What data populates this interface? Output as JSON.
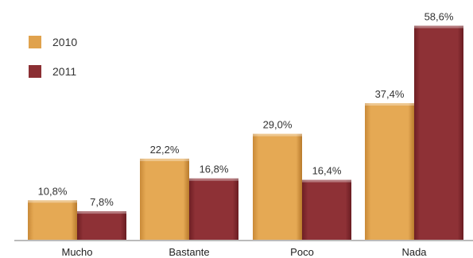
{
  "chart_data": {
    "type": "bar",
    "categories": [
      "Mucho",
      "Bastante",
      "Poco",
      "Nada"
    ],
    "series": [
      {
        "name": "2010",
        "values": [
          10.8,
          22.2,
          29.0,
          37.4
        ],
        "labels": [
          "10,8%",
          "22,2%",
          "29,0%",
          "37,4%"
        ],
        "color": "#E0A24D"
      },
      {
        "name": "2011",
        "values": [
          7.8,
          16.8,
          16.4,
          58.6
        ],
        "labels": [
          "7,8%",
          "16,8%",
          "16,4%",
          "58,6%"
        ],
        "color": "#8B2F33"
      }
    ],
    "ylim": [
      0,
      60
    ],
    "grid": false,
    "legend": "top-left",
    "title": "",
    "xlabel": "",
    "ylabel": ""
  }
}
